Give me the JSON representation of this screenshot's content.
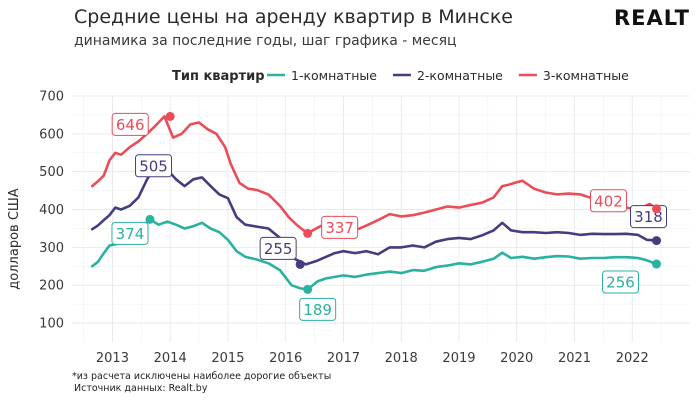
{
  "header": {
    "title": "Средние цены на аренду квартир в Минске",
    "subtitle": "динамика за последние годы, шаг графика - месяц",
    "brand": "REALT"
  },
  "footer": {
    "note": "*из расчета исключены наиболее дорогие объекты",
    "source": "Источник данных: Realt.by"
  },
  "chart_data": {
    "type": "line",
    "title": "Средние цены на аренду квартир в Минске",
    "subtitle": "динамика за последние годы, шаг графика - месяц",
    "xlabel": "",
    "ylabel": "долларов США",
    "legend_title": "Тип квартир",
    "legend_position": "top",
    "grid": true,
    "xlim": [
      2012.3,
      2023.0
    ],
    "ylim": [
      50,
      700
    ],
    "x_ticks": [
      2013,
      2014,
      2015,
      2016,
      2017,
      2018,
      2019,
      2020,
      2021,
      2022
    ],
    "x_tick_labels": [
      "2013",
      "2014",
      "2015",
      "2016",
      "2017",
      "2018",
      "2019",
      "2020",
      "2021",
      "2022"
    ],
    "y_ticks": [
      100,
      200,
      300,
      400,
      500,
      600,
      700
    ],
    "y_tick_labels": [
      "100",
      "200",
      "300",
      "400",
      "500",
      "600",
      "700"
    ],
    "series": [
      {
        "name": "1-комнатные",
        "color": "#2ab2a0",
        "x": [
          2012.65,
          2012.75,
          2012.85,
          2012.95,
          2013.05,
          2013.15,
          2013.25,
          2013.35,
          2013.5,
          2013.65,
          2013.8,
          2013.95,
          2014.1,
          2014.25,
          2014.4,
          2014.55,
          2014.7,
          2014.85,
          2015.0,
          2015.15,
          2015.3,
          2015.5,
          2015.7,
          2015.9,
          2016.1,
          2016.25,
          2016.38,
          2016.55,
          2016.7,
          2016.85,
          2017.0,
          2017.2,
          2017.4,
          2017.6,
          2017.8,
          2018.0,
          2018.2,
          2018.4,
          2018.6,
          2018.8,
          2019.0,
          2019.2,
          2019.4,
          2019.6,
          2019.75,
          2019.9,
          2020.1,
          2020.3,
          2020.5,
          2020.7,
          2020.9,
          2021.1,
          2021.3,
          2021.5,
          2021.7,
          2021.9,
          2022.1,
          2022.25,
          2022.42
        ],
        "values": [
          250,
          262,
          285,
          305,
          308,
          312,
          316,
          332,
          352,
          374,
          360,
          368,
          360,
          350,
          356,
          365,
          350,
          340,
          320,
          290,
          275,
          268,
          258,
          240,
          200,
          192,
          189,
          210,
          218,
          222,
          226,
          222,
          228,
          232,
          236,
          232,
          240,
          238,
          248,
          252,
          258,
          255,
          262,
          270,
          286,
          272,
          275,
          270,
          274,
          277,
          276,
          270,
          272,
          272,
          274,
          274,
          272,
          266,
          256
        ]
      },
      {
        "name": "2-комнатные",
        "color": "#443d7f",
        "x": [
          2012.65,
          2012.75,
          2012.85,
          2012.95,
          2013.05,
          2013.15,
          2013.3,
          2013.45,
          2013.6,
          2013.7,
          2013.8,
          2013.95,
          2014.1,
          2014.25,
          2014.4,
          2014.55,
          2014.7,
          2014.85,
          2015.0,
          2015.15,
          2015.3,
          2015.5,
          2015.7,
          2015.9,
          2016.0,
          2016.15,
          2016.35,
          2016.55,
          2016.7,
          2016.85,
          2017.0,
          2017.2,
          2017.4,
          2017.6,
          2017.8,
          2018.0,
          2018.2,
          2018.4,
          2018.6,
          2018.8,
          2019.0,
          2019.2,
          2019.4,
          2019.6,
          2019.75,
          2019.9,
          2020.1,
          2020.3,
          2020.5,
          2020.7,
          2020.9,
          2021.1,
          2021.3,
          2021.5,
          2021.7,
          2021.9,
          2022.1,
          2022.25,
          2022.42
        ],
        "values": [
          348,
          358,
          372,
          385,
          405,
          400,
          410,
          432,
          480,
          505,
          498,
          505,
          480,
          462,
          480,
          485,
          462,
          440,
          430,
          380,
          360,
          355,
          350,
          325,
          300,
          270,
          255,
          265,
          275,
          285,
          290,
          285,
          290,
          282,
          300,
          300,
          305,
          300,
          315,
          322,
          325,
          322,
          332,
          345,
          365,
          345,
          340,
          340,
          338,
          340,
          338,
          333,
          336,
          335,
          335,
          336,
          333,
          320,
          318
        ]
      },
      {
        "name": "3-комнатные",
        "color": "#ea4d57",
        "x": [
          2012.65,
          2012.75,
          2012.85,
          2012.95,
          2013.05,
          2013.15,
          2013.3,
          2013.45,
          2013.6,
          2013.75,
          2013.9,
          2014.05,
          2014.2,
          2014.35,
          2014.5,
          2014.65,
          2014.8,
          2014.95,
          2015.05,
          2015.2,
          2015.35,
          2015.5,
          2015.7,
          2015.9,
          2016.05,
          2016.2,
          2016.38,
          2016.55,
          2016.7,
          2016.85,
          2017.0,
          2017.2,
          2017.4,
          2017.6,
          2017.8,
          2018.0,
          2018.2,
          2018.4,
          2018.6,
          2018.8,
          2019.0,
          2019.2,
          2019.4,
          2019.6,
          2019.75,
          2019.85,
          2020.0,
          2020.1,
          2020.3,
          2020.5,
          2020.7,
          2020.9,
          2021.1,
          2021.3,
          2021.5,
          2021.7,
          2021.9,
          2022.1,
          2022.3,
          2022.42
        ],
        "values": [
          462,
          475,
          490,
          530,
          550,
          545,
          565,
          580,
          600,
          622,
          646,
          590,
          600,
          625,
          630,
          612,
          600,
          565,
          520,
          470,
          455,
          452,
          440,
          410,
          380,
          358,
          337,
          352,
          363,
          358,
          365,
          345,
          358,
          372,
          388,
          382,
          385,
          392,
          400,
          408,
          405,
          412,
          418,
          432,
          462,
          465,
          472,
          476,
          455,
          445,
          440,
          442,
          440,
          430,
          425,
          420,
          405,
          400,
          415,
          402
        ]
      }
    ],
    "annotations": [
      {
        "text": "374",
        "x": 2013.65,
        "y": 374,
        "series": "1-комнатные",
        "point": true
      },
      {
        "text": "189",
        "x": 2016.38,
        "y": 189,
        "series": "1-комнатные",
        "point": true
      },
      {
        "text": "256",
        "x": 2022.42,
        "y": 256,
        "series": "1-комнатные",
        "point": true
      },
      {
        "text": "505",
        "x": 2013.85,
        "y": 505,
        "series": "2-комнатные",
        "point": true
      },
      {
        "text": "255",
        "x": 2016.25,
        "y": 255,
        "series": "2-комнатные",
        "point": true
      },
      {
        "text": "318",
        "x": 2022.42,
        "y": 318,
        "series": "2-комнатные",
        "point": true
      },
      {
        "text": "646",
        "x": 2014.0,
        "y": 646,
        "series": "3-комнатные",
        "point": true
      },
      {
        "text": "337",
        "x": 2016.38,
        "y": 337,
        "series": "3-комнатные",
        "point": true
      },
      {
        "text": "402",
        "x": 2022.42,
        "y": 402,
        "series": "3-комнатные",
        "point": true
      }
    ]
  }
}
